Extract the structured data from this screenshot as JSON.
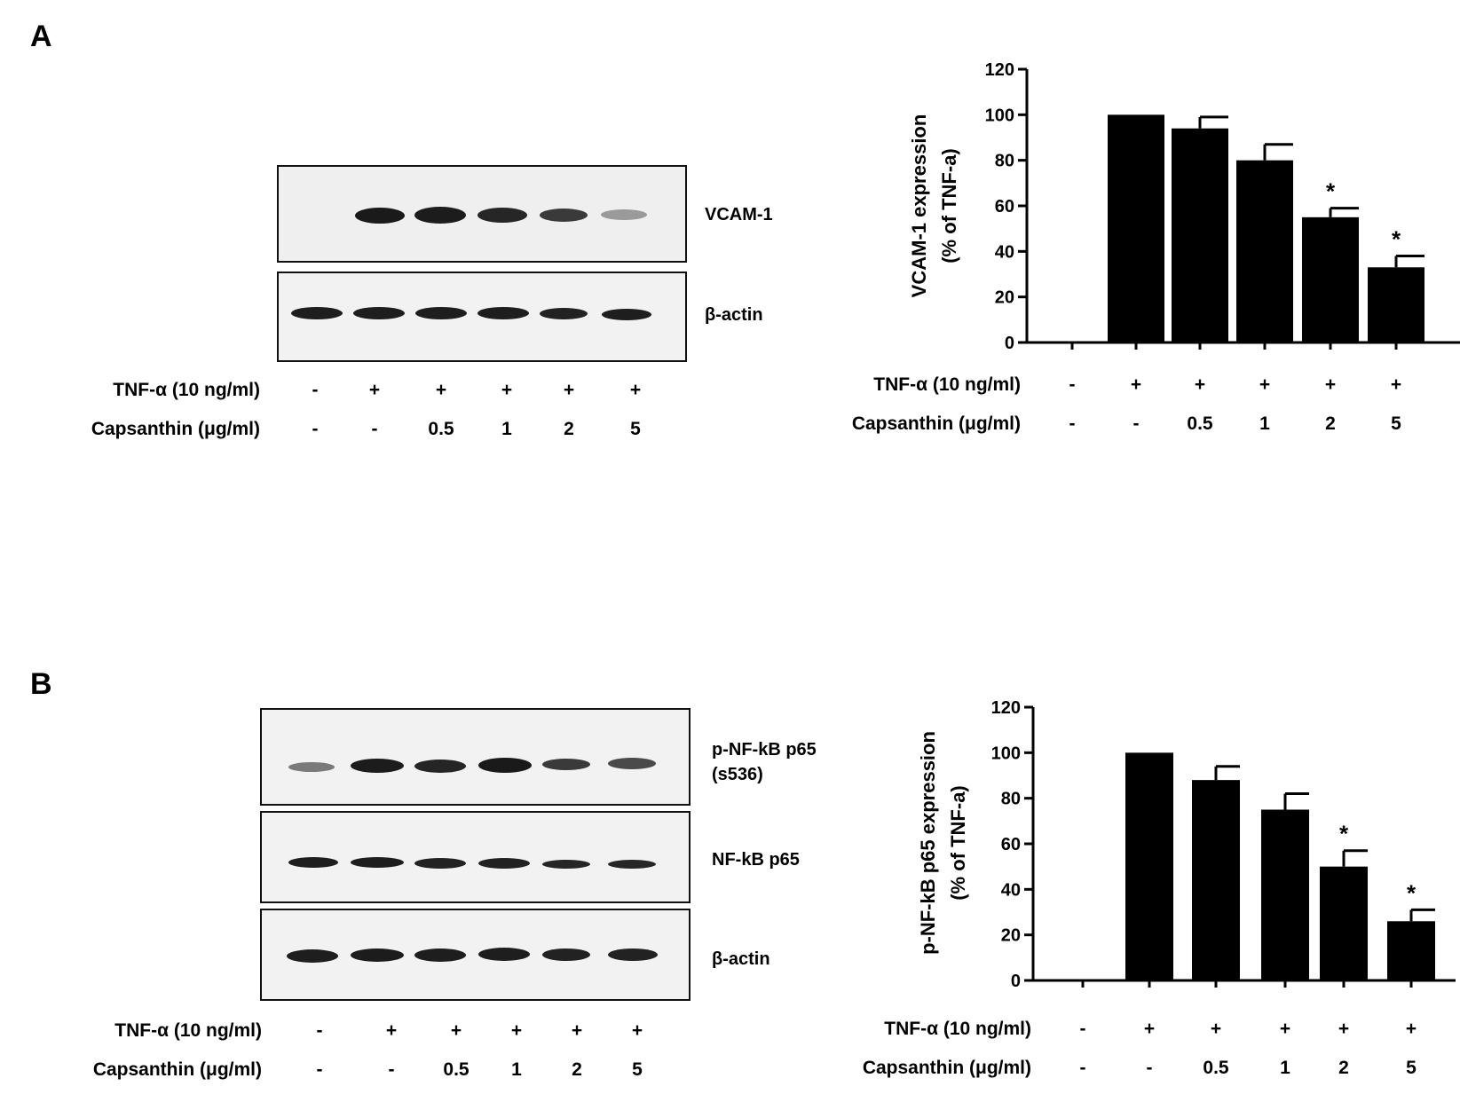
{
  "panel_a": {
    "letter": "A",
    "blot_labels": [
      "VCAM-1",
      "β-actin"
    ],
    "tnf_label": "TNF-α (10 ng/ml)",
    "caps_label": "Capsanthin (μg/ml)",
    "tnf_values": [
      "-",
      "+",
      "+",
      "+",
      "+",
      "+"
    ],
    "caps_values": [
      "-",
      "-",
      "0.5",
      "1",
      "2",
      "5"
    ]
  },
  "panel_b": {
    "letter": "B",
    "blot_labels": [
      "p-NF-kB p65",
      "(s536)",
      "NF-kB p65",
      "β-actin"
    ],
    "tnf_label": "TNF-α (10 ng/ml)",
    "caps_label": "Capsanthin (μg/ml)",
    "tnf_values": [
      "-",
      "+",
      "+",
      "+",
      "+",
      "+"
    ],
    "caps_values": [
      "-",
      "-",
      "0.5",
      "1",
      "2",
      "5"
    ]
  },
  "chart_data": [
    {
      "type": "bar",
      "ylabel_lines": [
        "VCAM-1 expression",
        "(% of TNF-a)"
      ],
      "ylim": [
        0,
        120
      ],
      "yticks": [
        0,
        20,
        40,
        60,
        80,
        100,
        120
      ],
      "categories": [
        "1",
        "2",
        "3",
        "4",
        "5",
        "6"
      ],
      "values": [
        0,
        100,
        94,
        80,
        55,
        33
      ],
      "errors": [
        0,
        0,
        5,
        7,
        4,
        5
      ],
      "significance": [
        "",
        "",
        "",
        "",
        "*",
        "*"
      ],
      "bar_color": "#000000",
      "tnf_label": "TNF-α (10 ng/ml)",
      "caps_label": "Capsanthin (μg/ml)",
      "tnf_values": [
        "-",
        "+",
        "+",
        "+",
        "+",
        "+"
      ],
      "caps_values": [
        "-",
        "-",
        "0.5",
        "1",
        "2",
        "5"
      ]
    },
    {
      "type": "bar",
      "ylabel_lines": [
        "p-NF-kB p65 expression",
        "(% of TNF-a)"
      ],
      "ylim": [
        0,
        120
      ],
      "yticks": [
        0,
        20,
        40,
        60,
        80,
        100,
        120
      ],
      "categories": [
        "1",
        "2",
        "3",
        "4",
        "5",
        "6"
      ],
      "values": [
        0,
        100,
        88,
        75,
        50,
        26
      ],
      "errors": [
        0,
        0,
        6,
        7,
        7,
        5
      ],
      "significance": [
        "",
        "",
        "",
        "",
        "*",
        "*"
      ],
      "bar_color": "#000000",
      "tnf_label": "TNF-α (10 ng/ml)",
      "caps_label": "Capsanthin (μg/ml)",
      "tnf_values": [
        "-",
        "+",
        "+",
        "+",
        "+",
        "+"
      ],
      "caps_values": [
        "-",
        "-",
        "0.5",
        "1",
        "2",
        "5"
      ]
    }
  ]
}
